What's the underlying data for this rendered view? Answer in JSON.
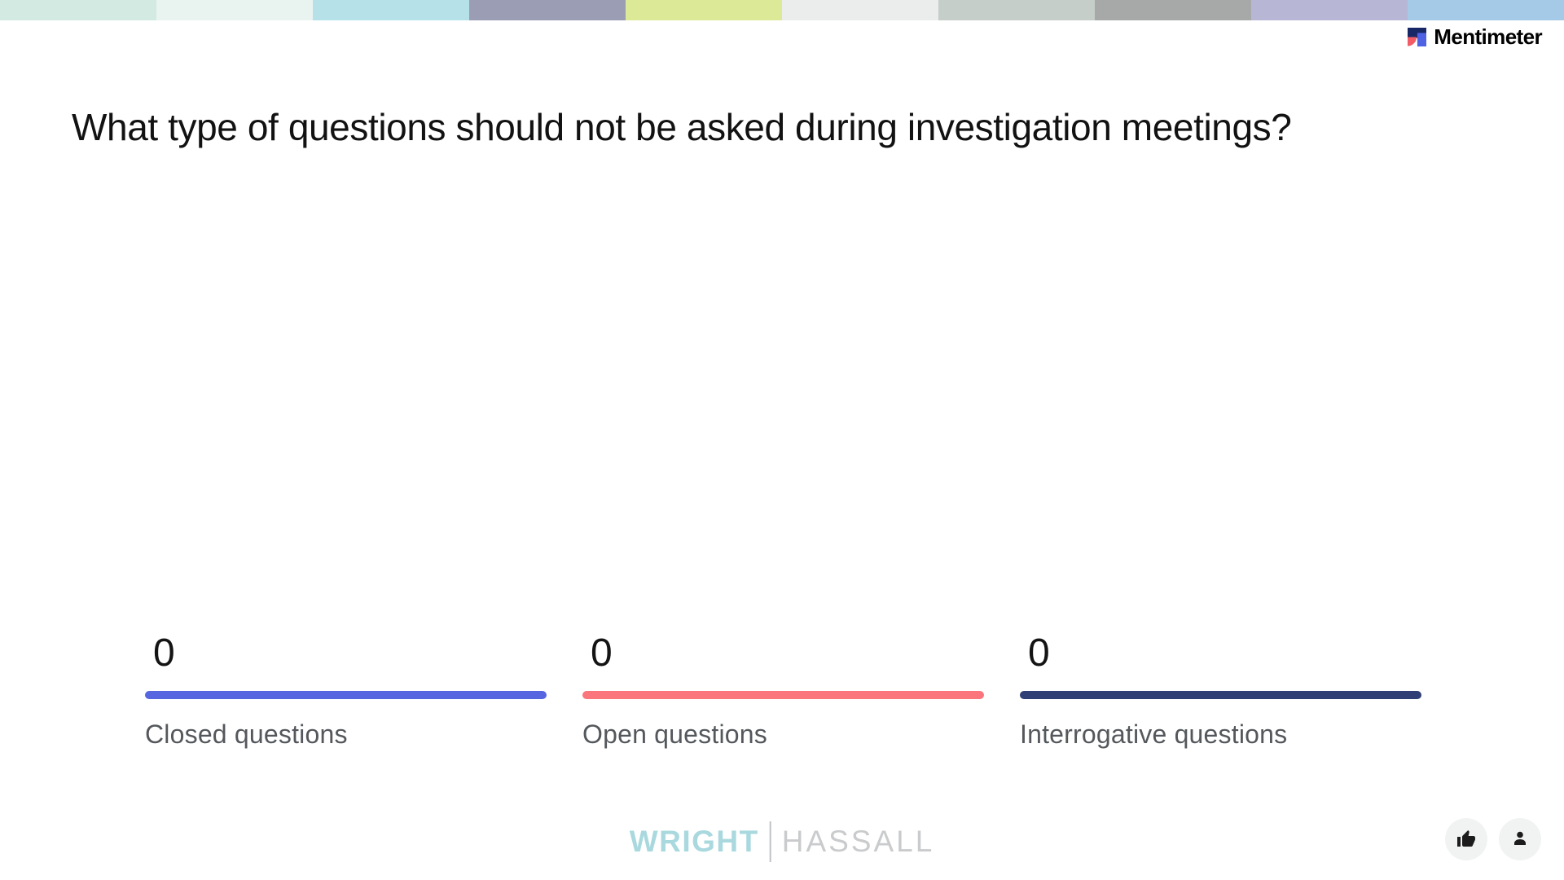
{
  "top_strip": {
    "colors": [
      "#d2eae2",
      "#e9f3ef",
      "#b7e1e8",
      "#9a9db3",
      "#dcea97",
      "#ebecec",
      "#c5cec9",
      "#a7a9a9",
      "#b8b6d5",
      "#a4cae7"
    ]
  },
  "brand": {
    "name": "Mentimeter",
    "logo_colors": {
      "navy": "#182867",
      "coral": "#f25c66",
      "indigo": "#4f62e4"
    }
  },
  "chart_data": {
    "type": "bar",
    "title": "What type of questions should not be asked during investigation meetings?",
    "categories": [
      "Closed questions",
      "Open questions",
      "Interrogative questions"
    ],
    "values": [
      0,
      0,
      0
    ],
    "bar_colors": [
      "#5566e0",
      "#fa757c",
      "#2f3e74"
    ],
    "value_label_color": "#141414",
    "category_label_color": "#54585c",
    "orientation": "columns-bottom-aligned",
    "legend": "none",
    "grid": "off"
  },
  "watermark": {
    "left": "WRIGHT",
    "right": "HASSALL",
    "left_color": "#a9d9de",
    "right_color": "#c9cbcc"
  },
  "actions": {
    "like_icon": "thumbs-up-icon",
    "participants_icon": "person-icon"
  }
}
